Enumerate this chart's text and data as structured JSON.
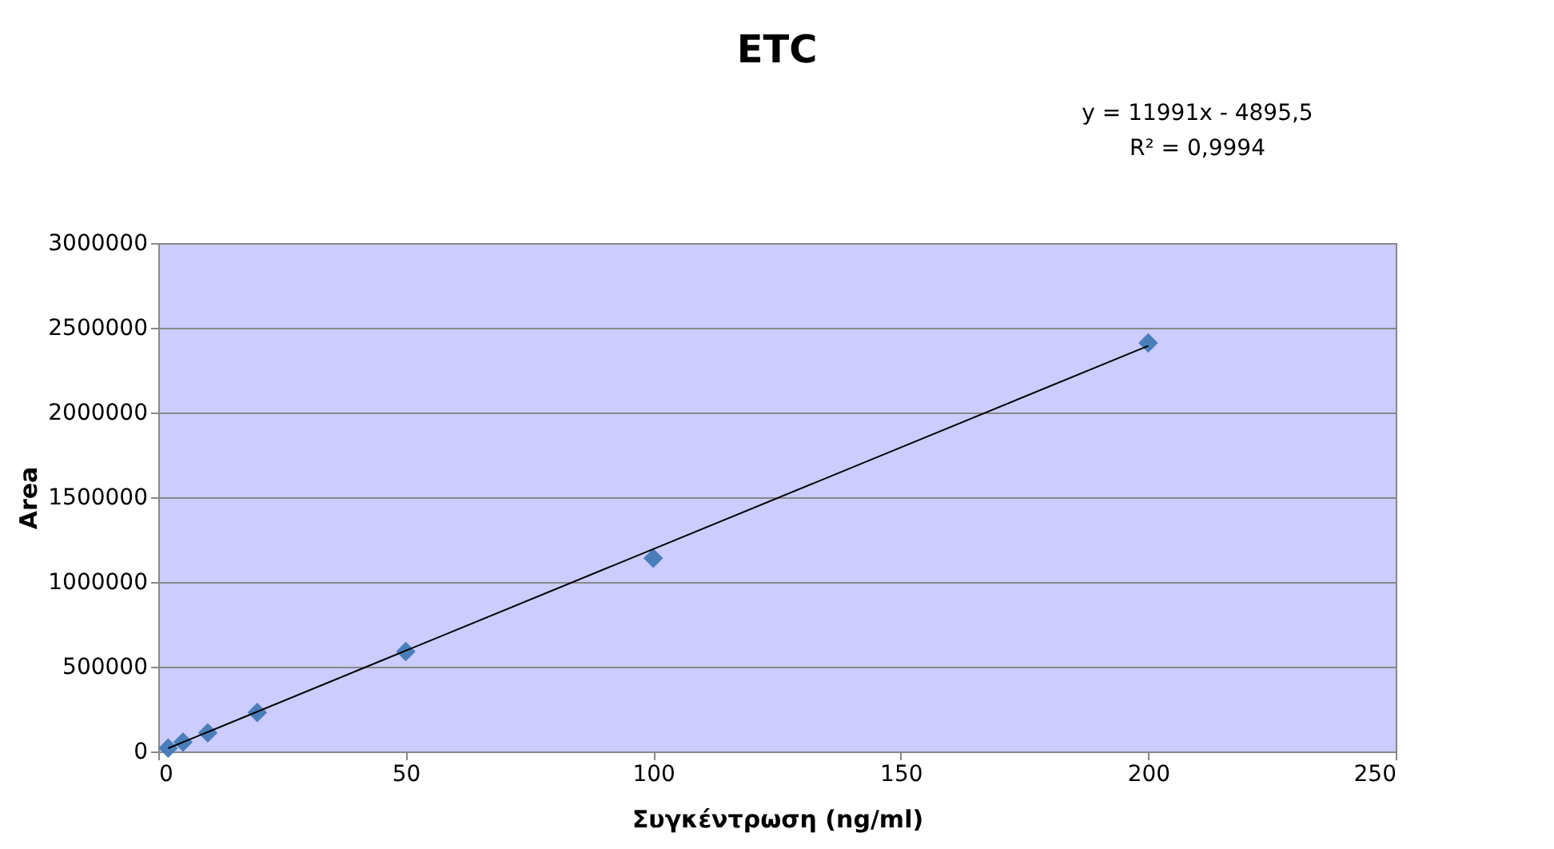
{
  "chart_data": {
    "type": "scatter",
    "title": "ETC",
    "xlabel": "Συγκέντρωση (ng/ml)",
    "ylabel": "Area",
    "series": [
      {
        "color": "#4a7ebb",
        "marker": "diamond",
        "x": [
          2,
          5,
          10,
          20,
          50,
          100,
          200
        ],
        "values": [
          20000,
          55000,
          110000,
          230000,
          590000,
          1140000,
          2410000
        ]
      },
      {
        "type": "line",
        "color": "#000000",
        "x": [
          2,
          200
        ],
        "values": [
          19087,
          2393304
        ]
      }
    ],
    "annotations": [
      "y = 11991x - 4895,5",
      "R² = 0,9994"
    ],
    "xlim": [
      0,
      250
    ],
    "xticks": [
      0,
      50,
      100,
      150,
      200,
      250
    ],
    "ylim": [
      0,
      3000000
    ],
    "yticks": [
      0,
      500000,
      1000000,
      1500000,
      2000000,
      2500000,
      3000000
    ],
    "grid": "y",
    "legend": false
  }
}
